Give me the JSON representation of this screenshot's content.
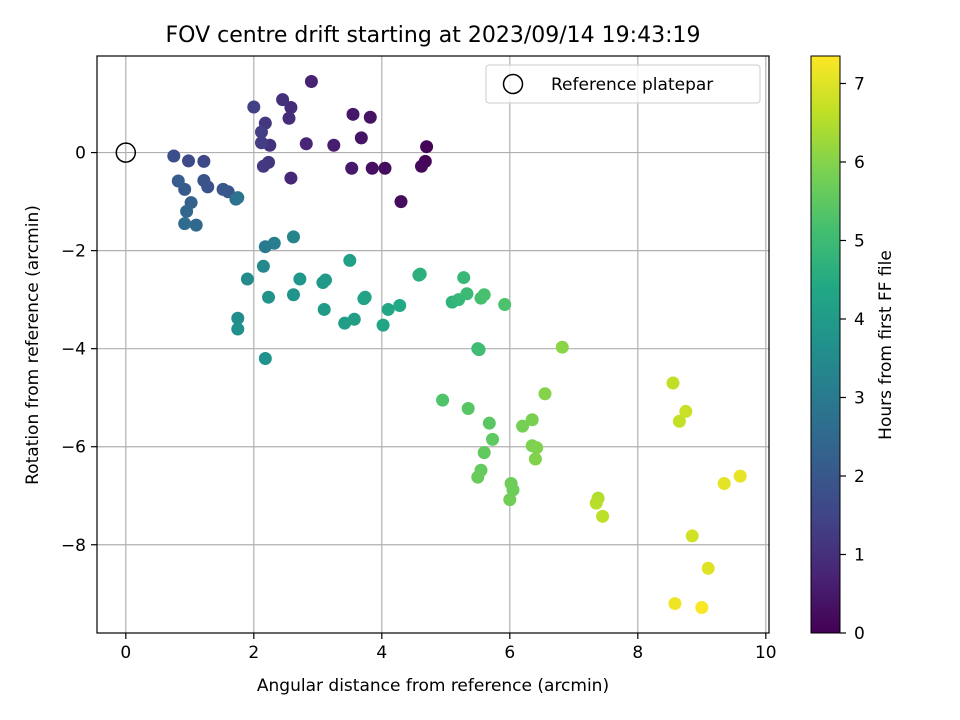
{
  "chart_data": {
    "type": "scatter",
    "title": "FOV centre drift starting at 2023/09/14 19:43:19",
    "xlabel": "Angular distance from reference (arcmin)",
    "ylabel": "Rotation from reference (arcmin)",
    "xlim": [
      -0.45,
      10.05
    ],
    "ylim": [
      -9.8,
      1.97
    ],
    "xticks": [
      0,
      2,
      4,
      6,
      8,
      10
    ],
    "xtick_labels": [
      "0",
      "2",
      "4",
      "6",
      "8",
      "10"
    ],
    "yticks": [
      0,
      -2,
      -4,
      -6,
      -8
    ],
    "ytick_labels": [
      "0",
      "−2",
      "−4",
      "−6",
      "−8"
    ],
    "grid": true,
    "colormap": "viridis",
    "colorbar": {
      "label": "Hours from first FF file",
      "range": [
        0,
        7.35
      ],
      "ticks": [
        0,
        1,
        2,
        3,
        4,
        5,
        6,
        7
      ],
      "tick_labels": [
        "0",
        "1",
        "2",
        "3",
        "4",
        "5",
        "6",
        "7"
      ]
    },
    "legend": {
      "placement": "top-right",
      "entries": [
        {
          "label": "Reference platepar",
          "marker": "open-circle"
        }
      ]
    },
    "reference_point": [
      0,
      0
    ],
    "points": [
      [
        4.7,
        0.12,
        0.05
      ],
      [
        4.68,
        -0.18,
        0.1
      ],
      [
        4.62,
        -0.28,
        0.15
      ],
      [
        4.3,
        -1.0,
        0.2
      ],
      [
        4.05,
        -0.32,
        0.25
      ],
      [
        3.85,
        -0.32,
        0.3
      ],
      [
        3.82,
        0.72,
        0.35
      ],
      [
        3.68,
        0.3,
        0.4
      ],
      [
        3.55,
        0.78,
        0.45
      ],
      [
        3.53,
        -0.32,
        0.5
      ],
      [
        3.25,
        0.15,
        0.6
      ],
      [
        2.9,
        1.45,
        0.7
      ],
      [
        2.82,
        0.18,
        0.75
      ],
      [
        2.58,
        -0.52,
        0.8
      ],
      [
        2.58,
        0.92,
        0.9
      ],
      [
        2.55,
        0.7,
        0.95
      ],
      [
        2.45,
        1.08,
        1.0
      ],
      [
        2.25,
        0.15,
        1.05
      ],
      [
        2.23,
        -0.2,
        1.1
      ],
      [
        2.18,
        0.6,
        1.15
      ],
      [
        2.15,
        -0.28,
        1.2
      ],
      [
        2.12,
        0.2,
        1.3
      ],
      [
        2.12,
        0.42,
        1.35
      ],
      [
        2.0,
        0.93,
        1.4
      ],
      [
        1.22,
        -0.18,
        1.6
      ],
      [
        0.98,
        -0.17,
        1.7
      ],
      [
        0.75,
        -0.07,
        1.75
      ],
      [
        1.28,
        -0.7,
        1.85
      ],
      [
        1.22,
        -0.57,
        1.9
      ],
      [
        1.6,
        -0.8,
        1.95
      ],
      [
        1.52,
        -0.75,
        2.0
      ],
      [
        0.92,
        -0.75,
        2.1
      ],
      [
        0.82,
        -0.58,
        2.15
      ],
      [
        1.02,
        -1.02,
        2.3
      ],
      [
        0.95,
        -1.2,
        2.4
      ],
      [
        1.1,
        -1.48,
        2.5
      ],
      [
        0.92,
        -1.45,
        2.6
      ],
      [
        1.72,
        -0.95,
        2.7
      ],
      [
        1.75,
        -0.92,
        2.8
      ],
      [
        2.18,
        -1.92,
        3.0
      ],
      [
        2.32,
        -1.85,
        3.1
      ],
      [
        2.62,
        -1.72,
        3.3
      ],
      [
        2.15,
        -2.32,
        3.4
      ],
      [
        1.9,
        -2.58,
        3.5
      ],
      [
        1.75,
        -3.38,
        3.6
      ],
      [
        1.75,
        -3.6,
        3.65
      ],
      [
        2.18,
        -4.2,
        3.7
      ],
      [
        2.23,
        -2.95,
        3.75
      ],
      [
        2.62,
        -2.9,
        3.8
      ],
      [
        2.72,
        -2.58,
        3.85
      ],
      [
        3.08,
        -2.65,
        3.9
      ],
      [
        3.12,
        -2.6,
        3.95
      ],
      [
        3.1,
        -3.2,
        4.0
      ],
      [
        3.42,
        -3.48,
        4.05
      ],
      [
        3.57,
        -3.4,
        4.1
      ],
      [
        3.5,
        -2.2,
        4.15
      ],
      [
        3.72,
        -2.98,
        4.2
      ],
      [
        3.74,
        -2.95,
        4.25
      ],
      [
        4.02,
        -3.52,
        4.3
      ],
      [
        4.1,
        -3.2,
        4.35
      ],
      [
        4.28,
        -3.12,
        4.4
      ],
      [
        4.58,
        -2.5,
        4.6
      ],
      [
        4.6,
        -2.48,
        4.65
      ],
      [
        5.1,
        -3.05,
        4.75
      ],
      [
        5.2,
        -3.0,
        4.85
      ],
      [
        5.28,
        -2.55,
        4.9
      ],
      [
        5.33,
        -2.88,
        4.95
      ],
      [
        5.5,
        -4.0,
        5.0
      ],
      [
        5.52,
        -4.02,
        5.05
      ],
      [
        5.55,
        -2.97,
        5.15
      ],
      [
        5.6,
        -2.9,
        5.2
      ],
      [
        5.92,
        -3.1,
        5.25
      ],
      [
        4.95,
        -5.05,
        5.3
      ],
      [
        5.35,
        -5.22,
        5.4
      ],
      [
        5.68,
        -5.52,
        5.45
      ],
      [
        5.73,
        -5.85,
        5.5
      ],
      [
        5.6,
        -6.12,
        5.55
      ],
      [
        5.55,
        -6.48,
        5.6
      ],
      [
        5.5,
        -6.62,
        5.65
      ],
      [
        6.05,
        -6.88,
        5.7
      ],
      [
        6.02,
        -6.75,
        5.72
      ],
      [
        6.0,
        -7.08,
        5.75
      ],
      [
        6.2,
        -5.58,
        5.8
      ],
      [
        6.35,
        -5.45,
        5.85
      ],
      [
        6.35,
        -5.98,
        5.9
      ],
      [
        6.42,
        -6.02,
        5.92
      ],
      [
        6.4,
        -6.25,
        5.95
      ],
      [
        6.55,
        -4.92,
        6.0
      ],
      [
        6.82,
        -3.97,
        6.05
      ],
      [
        7.38,
        -7.05,
        6.5
      ],
      [
        7.35,
        -7.15,
        6.55
      ],
      [
        7.45,
        -7.42,
        6.6
      ],
      [
        8.55,
        -4.7,
        6.65
      ],
      [
        8.65,
        -5.48,
        6.7
      ],
      [
        8.75,
        -5.28,
        6.75
      ],
      [
        8.85,
        -7.82,
        6.85
      ],
      [
        9.1,
        -8.48,
        7.0
      ],
      [
        9.35,
        -6.75,
        7.05
      ],
      [
        9.6,
        -6.6,
        7.1
      ],
      [
        8.58,
        -9.2,
        7.2
      ],
      [
        9.0,
        -9.28,
        7.3
      ]
    ]
  }
}
